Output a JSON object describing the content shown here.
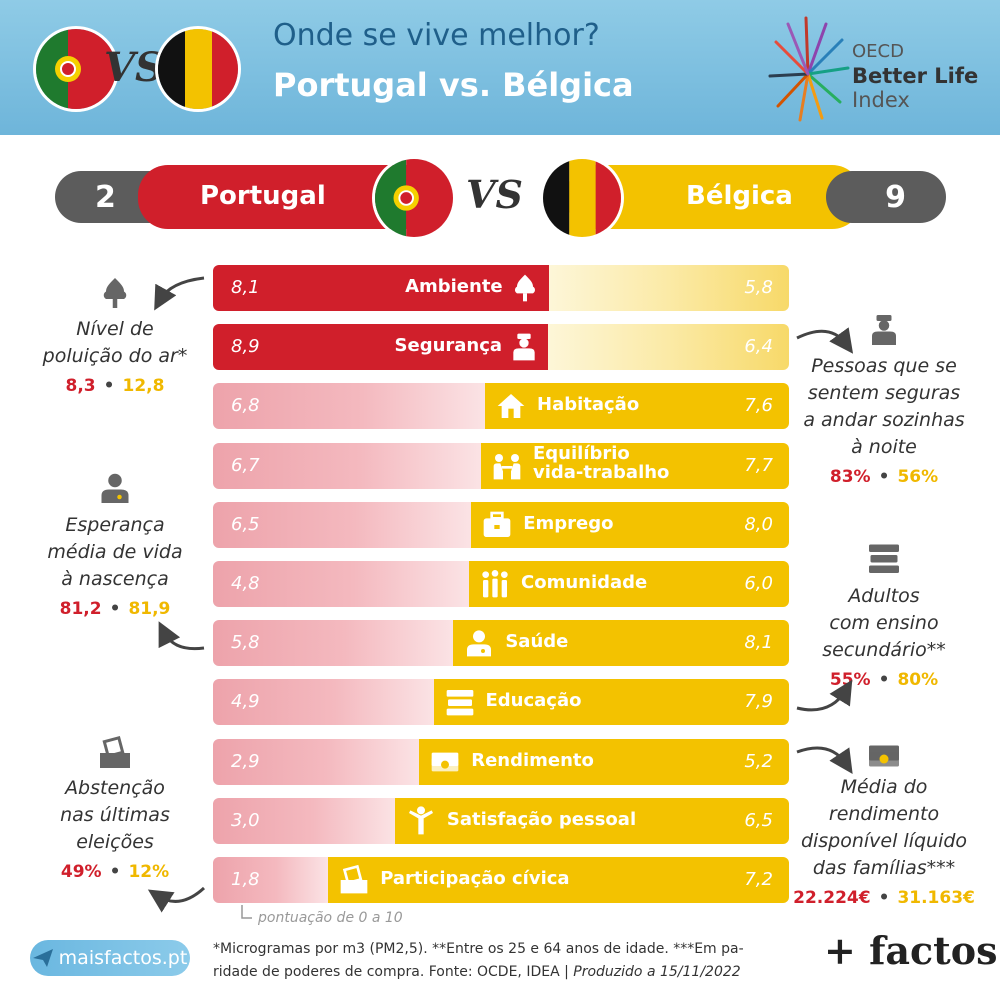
{
  "header": {
    "title_line1": "Onde se vive melhor?",
    "title_line2": "Portugal vs. Bélgica",
    "vs": "VS",
    "logo": {
      "oecd": "OECD",
      "line1": "Better Life",
      "line2": "Index"
    }
  },
  "scoreboard": {
    "left_score": "2",
    "left_name": "Portugal",
    "right_name": "Bélgica",
    "right_score": "9",
    "vs": "VS"
  },
  "colors": {
    "portugal": "#d01f2b",
    "belgica": "#f3c200",
    "portugal_light": "#f4b9bf",
    "belgica_light": "#fbeaa6"
  },
  "chart_data": {
    "type": "bar",
    "categories": [
      "Ambiente",
      "Segurança",
      "Habitação",
      "Equilíbrio vida-trabalho",
      "Emprego",
      "Comunidade",
      "Saúde",
      "Educação",
      "Rendimento",
      "Satisfação pessoal",
      "Participação cívica"
    ],
    "category_lines": [
      [
        "Ambiente"
      ],
      [
        "Segurança"
      ],
      [
        "Habitação"
      ],
      [
        "Equilíbrio",
        "vida-trabalho"
      ],
      [
        "Emprego"
      ],
      [
        "Comunidade"
      ],
      [
        "Saúde"
      ],
      [
        "Educação"
      ],
      [
        "Rendimento"
      ],
      [
        "Satisfação pessoal"
      ],
      [
        "Participação cívica"
      ]
    ],
    "icons": [
      "tree-icon",
      "police-icon",
      "house-icon",
      "work-life-icon",
      "briefcase-icon",
      "community-icon",
      "doctor-icon",
      "books-icon",
      "money-icon",
      "person-icon",
      "ballot-icon"
    ],
    "series": [
      {
        "name": "Portugal",
        "values": [
          "8,1",
          "8,9",
          "6,8",
          "6,7",
          "6,5",
          "4,8",
          "5,8",
          "4,9",
          "2,9",
          "3,0",
          "1,8"
        ]
      },
      {
        "name": "Bélgica",
        "values": [
          "5,8",
          "6,4",
          "7,6",
          "7,7",
          "8,0",
          "6,0",
          "8,1",
          "7,9",
          "5,2",
          "6,5",
          "7,2"
        ]
      }
    ],
    "winner": [
      "pt",
      "pt",
      "be",
      "be",
      "be",
      "be",
      "be",
      "be",
      "be",
      "be",
      "be"
    ],
    "scale_note": "pontuação de 0 a 10",
    "xlim": [
      0,
      10
    ]
  },
  "notes": {
    "left": [
      {
        "icon": "tree-icon",
        "title": [
          "Nível de",
          "poluição do ar*"
        ],
        "pt": "8,3",
        "be": "12,8"
      },
      {
        "icon": "doctor-icon",
        "title": [
          "Esperança",
          "média de vida",
          "à nascença"
        ],
        "pt": "81,2",
        "be": "81,9"
      },
      {
        "icon": "ballot-icon",
        "title": [
          "Abstenção",
          "nas últimas",
          "eleições"
        ],
        "pt": "49%",
        "be": "12%"
      }
    ],
    "right": [
      {
        "icon": "police-icon",
        "title": [
          "Pessoas que se",
          "sentem seguras",
          "a andar sozinhas",
          "à noite"
        ],
        "pt": "83%",
        "be": "56%"
      },
      {
        "icon": "books-icon",
        "title": [
          "Adultos",
          "com ensino",
          "secundário**"
        ],
        "pt": "55%",
        "be": "80%"
      },
      {
        "icon": "money-icon",
        "title": [
          "Média do",
          "rendimento",
          "disponível líquido",
          "das famílias***"
        ],
        "pt": "22.224€",
        "be": "31.163€"
      }
    ]
  },
  "footer": {
    "site": "maisfactos.pt",
    "footnote_line1": "*Microgramas por m3 (PM2,5). **Entre os 25 e 64 anos de idade. ***Em pa-",
    "footnote_line2_a": "ridade de poderes de compra. Fonte: OCDE, IDEA | ",
    "footnote_line2_b": "Produzido a 15/11/2022",
    "brand": "+ factos"
  }
}
